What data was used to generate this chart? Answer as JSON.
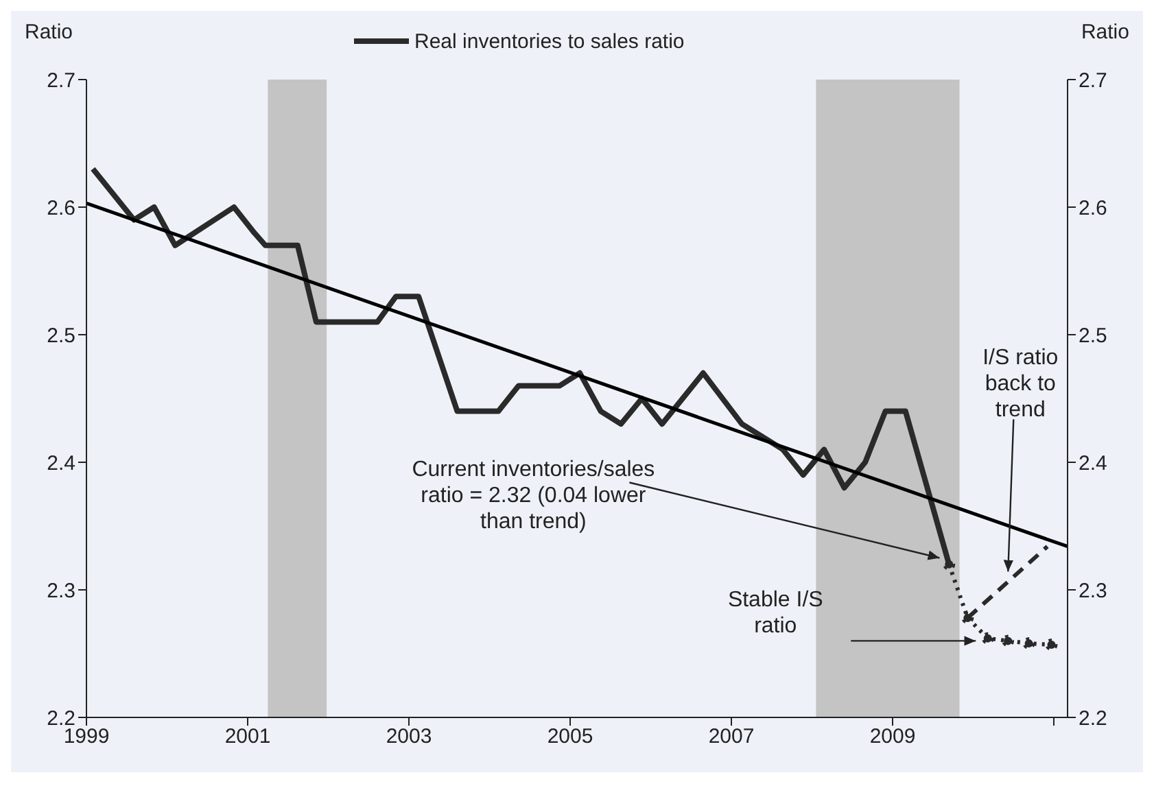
{
  "chart_data": {
    "type": "line",
    "ylabel": "Ratio",
    "y2label": "Ratio",
    "legend": "top",
    "xlim": [
      1999,
      2011.17
    ],
    "xticks": [
      1999,
      2001,
      2003,
      2005,
      2007,
      2009,
      {
        "value": 2011,
        "label": null
      }
    ],
    "ylim": [
      2.2,
      2.7
    ],
    "yticks": [
      2.2,
      2.3,
      2.4,
      2.5,
      2.6,
      2.7
    ],
    "y2lim": [
      2.2,
      2.7
    ],
    "y2ticks": [
      2.2,
      2.3,
      2.4,
      2.5,
      2.6,
      2.7
    ],
    "series": [
      {
        "name": "Real inventories to sales ratio",
        "color": "#2a2a2a",
        "line_style": "solid",
        "marker": "none",
        "x": [
          1999.08,
          1999.59,
          1999.84,
          2000.1,
          2000.83,
          2001.08,
          2001.22,
          2001.62,
          2001.85,
          2002.61,
          2002.84,
          2003.12,
          2003.6,
          2004.11,
          2004.36,
          2004.87,
          2005.12,
          2005.38,
          2005.63,
          2005.89,
          2006.14,
          2006.65,
          2007.13,
          2007.64,
          2007.89,
          2008.15,
          2008.4,
          2008.66,
          2008.91,
          2009.16,
          2009.7
        ],
        "values": [
          2.63,
          2.59,
          2.6,
          2.57,
          2.6,
          2.58,
          2.57,
          2.57,
          2.51,
          2.51,
          2.53,
          2.53,
          2.44,
          2.44,
          2.46,
          2.46,
          2.47,
          2.44,
          2.43,
          2.45,
          2.43,
          2.47,
          2.43,
          2.41,
          2.39,
          2.41,
          2.38,
          2.4,
          2.44,
          2.44,
          2.32
        ]
      },
      {
        "color": "#000000",
        "line_style": "solid",
        "marker": "none",
        "x": [
          1999,
          2011.17
        ],
        "values": [
          2.603,
          2.334
        ]
      },
      {
        "color": "#2a2a2a",
        "line_style": "dotted",
        "marker": "circle",
        "x": [
          2009.7,
          2009.93,
          2010.18,
          2010.43,
          2010.69,
          2010.97
        ],
        "values": [
          2.32,
          2.278,
          2.262,
          2.26,
          2.258,
          2.257
        ]
      },
      {
        "color": "#2a2a2a",
        "line_style": "dashed",
        "marker": "none",
        "x": [
          2009.93,
          2010.92
        ],
        "values": [
          2.278,
          2.334
        ]
      }
    ],
    "bands": [
      {
        "axis": "x",
        "from": 2001.25,
        "to": 2001.98,
        "color": "#c4c4c4"
      },
      {
        "axis": "x",
        "from": 2008.05,
        "to": 2009.83,
        "color": "#c4c4c4"
      }
    ],
    "annotations": [
      {
        "text": "Current inventories/sales ratio = 2.32 (0.04 lower than trend)",
        "x": 2009.65,
        "y": 2.325
      },
      {
        "text": "I/S ratio back to trend",
        "x": 2010.5,
        "y": 2.31
      },
      {
        "text": "Stable I/S ratio",
        "x": 2010.1,
        "y": 2.26
      }
    ]
  }
}
